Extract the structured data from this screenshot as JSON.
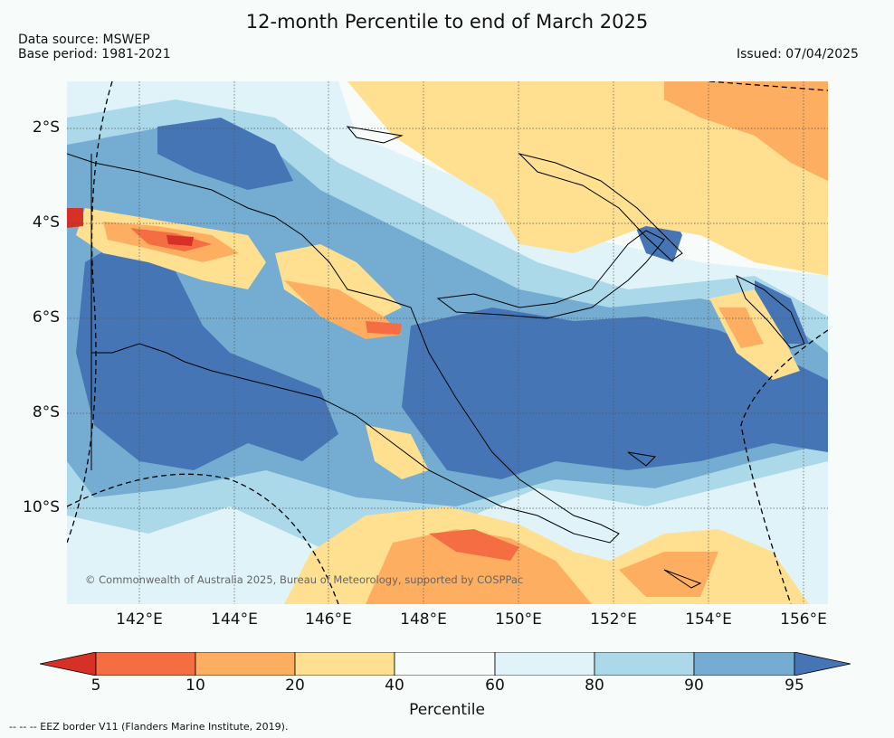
{
  "title": "12-month Percentile to end of March 2025",
  "data_source": "Data source: MSWEP",
  "base_period": "Base period: 1981-2021",
  "issued": "Issued: 07/04/2025",
  "copyright": "© Commonwealth of Australia 2025, Bureau of Meteorology, supported by COSPPac",
  "lat_labels": [
    "2°S",
    "4°S",
    "6°S",
    "8°S",
    "10°S"
  ],
  "lon_labels": [
    "142°E",
    "144°E",
    "146°E",
    "148°E",
    "150°E",
    "152°E",
    "154°E",
    "156°E"
  ],
  "colorbar": {
    "label": "Percentile",
    "ticks": [
      "5",
      "10",
      "20",
      "40",
      "60",
      "80",
      "90",
      "95"
    ],
    "colors": [
      "#d73027",
      "#f46d43",
      "#fdae61",
      "#fee090",
      "#f7fcfb",
      "#e0f3f8",
      "#abd9e9",
      "#74add1",
      "#4575b4"
    ]
  },
  "footnote": "-- -- -- EEZ border V11 (Flanders Marine Institute, 2019).",
  "colors": {
    "background": "#f7fcfb",
    "very_much_below": "#d73027",
    "below": "#fdae61",
    "above": "#74add1",
    "very_much_above": "#4575b4"
  }
}
